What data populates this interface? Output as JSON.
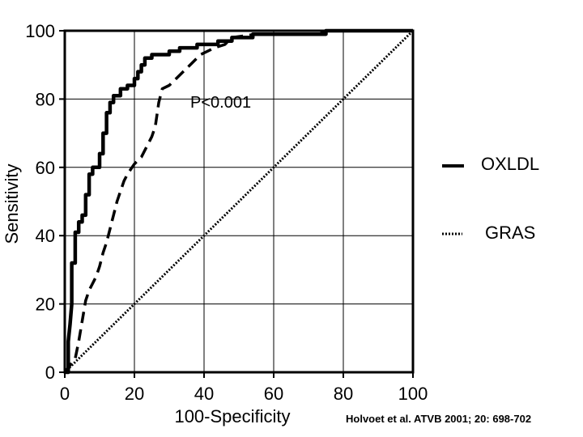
{
  "chart_data": {
    "type": "line",
    "xlabel": "100-Specificity",
    "ylabel": "Sensitivity",
    "xlim": [
      0,
      100
    ],
    "ylim": [
      0,
      100
    ],
    "x_ticks": [
      "0",
      "20",
      "40",
      "60",
      "80",
      "100"
    ],
    "y_ticks": [
      "0",
      "20",
      "40",
      "60",
      "80",
      "100"
    ],
    "grid": true,
    "legend_placement": "right",
    "annotation": "P<0.001",
    "citation": "Holvoet et al. ATVB  2001; 20: 698-702",
    "series": [
      {
        "name": "OXLDL",
        "style": "solid",
        "color": "#000000",
        "points": [
          [
            0,
            0
          ],
          [
            1,
            0
          ],
          [
            1,
            4
          ],
          [
            1,
            9
          ],
          [
            1.5,
            14
          ],
          [
            2,
            20
          ],
          [
            2,
            27
          ],
          [
            2,
            32
          ],
          [
            3,
            32
          ],
          [
            3,
            38
          ],
          [
            3,
            41
          ],
          [
            4,
            41
          ],
          [
            4,
            44
          ],
          [
            5,
            44
          ],
          [
            5,
            46
          ],
          [
            6,
            46
          ],
          [
            6,
            49
          ],
          [
            6,
            52
          ],
          [
            7,
            52
          ],
          [
            7,
            55
          ],
          [
            7,
            58
          ],
          [
            8,
            58
          ],
          [
            8,
            60
          ],
          [
            10,
            60
          ],
          [
            10,
            64
          ],
          [
            11,
            64
          ],
          [
            11,
            67
          ],
          [
            11,
            70
          ],
          [
            12,
            70
          ],
          [
            12,
            73
          ],
          [
            12,
            76
          ],
          [
            13,
            76
          ],
          [
            13,
            79
          ],
          [
            14,
            79
          ],
          [
            14,
            81
          ],
          [
            16,
            81
          ],
          [
            16,
            83
          ],
          [
            18,
            83
          ],
          [
            18,
            84
          ],
          [
            20,
            84
          ],
          [
            20,
            86
          ],
          [
            21,
            86
          ],
          [
            21,
            88
          ],
          [
            22,
            88
          ],
          [
            22,
            90
          ],
          [
            23,
            90
          ],
          [
            23,
            92
          ],
          [
            25,
            92
          ],
          [
            25,
            93
          ],
          [
            30,
            93
          ],
          [
            30,
            94
          ],
          [
            33,
            94
          ],
          [
            33,
            95
          ],
          [
            38,
            95
          ],
          [
            38,
            96
          ],
          [
            44,
            96
          ],
          [
            44,
            97
          ],
          [
            48,
            97
          ],
          [
            48,
            98
          ],
          [
            54,
            98
          ],
          [
            54,
            99
          ],
          [
            75,
            99
          ],
          [
            75,
            100
          ],
          [
            100,
            100
          ]
        ]
      },
      {
        "name": "GRAS",
        "style": "dotted",
        "color": "#000000",
        "points": [
          [
            0,
            0
          ],
          [
            100,
            100
          ]
        ]
      },
      {
        "name": "",
        "style": "dashed",
        "color": "#000000",
        "points": [
          [
            0,
            0
          ],
          [
            3,
            4
          ],
          [
            4,
            9
          ],
          [
            5,
            15
          ],
          [
            6,
            21
          ],
          [
            7,
            24
          ],
          [
            9,
            28
          ],
          [
            10,
            31
          ],
          [
            11,
            35
          ],
          [
            12,
            38
          ],
          [
            13,
            42
          ],
          [
            14,
            46
          ],
          [
            15,
            50
          ],
          [
            16,
            53
          ],
          [
            17,
            56
          ],
          [
            18,
            58
          ],
          [
            20,
            61
          ],
          [
            22,
            63
          ],
          [
            23,
            65
          ],
          [
            24,
            67
          ],
          [
            25,
            69
          ],
          [
            26,
            72
          ],
          [
            27,
            79
          ],
          [
            28,
            83
          ],
          [
            30,
            84
          ],
          [
            32,
            86
          ],
          [
            34,
            88
          ],
          [
            36,
            90
          ],
          [
            39,
            93
          ],
          [
            43,
            95
          ],
          [
            46,
            96
          ],
          [
            48,
            98
          ],
          [
            55,
            99
          ],
          [
            72,
            99
          ],
          [
            75,
            100
          ],
          [
            80,
            100
          ],
          [
            90,
            100
          ],
          [
            100,
            100
          ]
        ]
      }
    ]
  }
}
